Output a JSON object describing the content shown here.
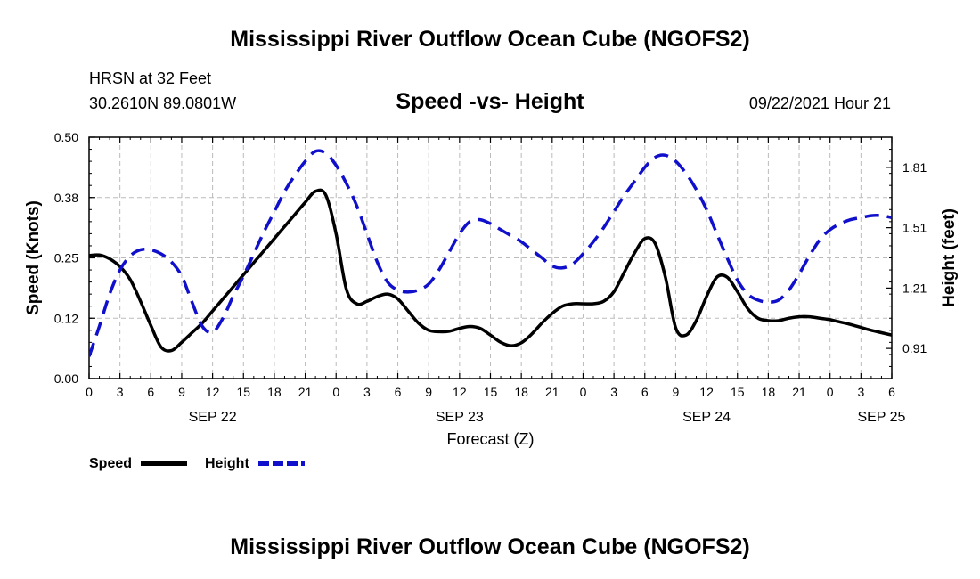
{
  "page": {
    "top_title": "Mississippi River Outflow Ocean Cube (NGOFS2)",
    "bottom_title": "Mississippi River Outflow Ocean Cube (NGOFS2)",
    "station": "HRSN at 32 Feet",
    "coords": "30.2610N  89.0801W",
    "subtitle": "Speed -vs- Height",
    "datetime": "09/22/2021 Hour 21"
  },
  "chart_data": {
    "type": "line",
    "title": "Speed -vs- Height",
    "xlabel": "Forecast (Z)",
    "ylabel": "Speed (Knots)",
    "y2label": "Height (feet)",
    "xlim": [
      0,
      78
    ],
    "ylim": [
      0.0,
      0.5
    ],
    "y2lim": [
      0.76,
      1.96
    ],
    "grid": true,
    "x_ticks": [
      0,
      3,
      6,
      9,
      12,
      15,
      18,
      21,
      24,
      27,
      30,
      33,
      36,
      39,
      42,
      45,
      48,
      51,
      54,
      57,
      60,
      63,
      66,
      69,
      72,
      75,
      78
    ],
    "x_tick_labels": [
      "0",
      "3",
      "6",
      "9",
      "12",
      "15",
      "18",
      "21",
      "0",
      "3",
      "6",
      "9",
      "12",
      "15",
      "18",
      "21",
      "0",
      "3",
      "6",
      "9",
      "12",
      "15",
      "18",
      "21",
      "0",
      "3",
      "6"
    ],
    "date_labels": [
      {
        "x": 12,
        "label": "SEP 22"
      },
      {
        "x": 36,
        "label": "SEP 23"
      },
      {
        "x": 60,
        "label": "SEP 24"
      },
      {
        "x": 77,
        "label": "SEP 25"
      }
    ],
    "y_ticks": [
      0.0,
      0.125,
      0.25,
      0.375,
      0.5
    ],
    "y_tick_labels": [
      "0.00",
      "0.12",
      "0.25",
      "0.38",
      "0.50"
    ],
    "y2_ticks": [
      0.91,
      1.21,
      1.51,
      1.81
    ],
    "y2_tick_labels": [
      "0.91",
      "1.21",
      "1.51",
      "1.81"
    ],
    "series": [
      {
        "name": "Speed",
        "axis": "left",
        "color": "#000000",
        "style": "solid",
        "x": [
          0,
          1,
          2,
          3,
          4,
          5,
          6,
          7,
          8,
          9,
          10,
          11,
          12,
          13,
          14,
          15,
          16,
          17,
          18,
          19,
          20,
          21,
          22,
          23,
          24,
          25,
          26,
          27,
          28,
          29,
          30,
          31,
          32,
          33,
          34,
          35,
          36,
          37,
          38,
          39,
          40,
          41,
          42,
          43,
          44,
          45,
          46,
          47,
          48,
          49,
          50,
          51,
          52,
          53,
          54,
          55,
          56,
          57,
          58,
          59,
          60,
          61,
          62,
          63,
          64,
          65,
          66,
          67,
          68,
          69,
          70,
          71,
          72,
          73,
          74,
          75,
          76,
          77,
          78
        ],
        "y": [
          0.255,
          0.256,
          0.248,
          0.232,
          0.205,
          0.16,
          0.11,
          0.065,
          0.058,
          0.075,
          0.095,
          0.115,
          0.14,
          0.165,
          0.19,
          0.215,
          0.24,
          0.265,
          0.29,
          0.315,
          0.34,
          0.365,
          0.388,
          0.38,
          0.3,
          0.185,
          0.155,
          0.16,
          0.17,
          0.175,
          0.165,
          0.14,
          0.115,
          0.1,
          0.097,
          0.098,
          0.104,
          0.108,
          0.104,
          0.09,
          0.075,
          0.068,
          0.074,
          0.092,
          0.115,
          0.135,
          0.15,
          0.155,
          0.155,
          0.155,
          0.16,
          0.18,
          0.22,
          0.26,
          0.29,
          0.28,
          0.21,
          0.105,
          0.09,
          0.12,
          0.17,
          0.21,
          0.21,
          0.18,
          0.145,
          0.125,
          0.12,
          0.12,
          0.125,
          0.128,
          0.128,
          0.125,
          0.122,
          0.117,
          0.112,
          0.106,
          0.1,
          0.095,
          0.09
        ]
      },
      {
        "name": "Height",
        "axis": "right",
        "color": "#1010cc",
        "style": "dashed",
        "x": [
          0,
          1,
          2,
          3,
          4,
          5,
          6,
          7,
          8,
          9,
          10,
          11,
          12,
          13,
          14,
          15,
          16,
          17,
          18,
          19,
          20,
          21,
          22,
          23,
          24,
          25,
          26,
          27,
          28,
          29,
          30,
          31,
          32,
          33,
          34,
          35,
          36,
          37,
          38,
          39,
          40,
          41,
          42,
          43,
          44,
          45,
          46,
          47,
          48,
          49,
          50,
          51,
          52,
          53,
          54,
          55,
          56,
          57,
          58,
          59,
          60,
          61,
          62,
          63,
          64,
          65,
          66,
          67,
          68,
          69,
          70,
          71,
          72,
          73,
          74,
          75,
          76,
          77,
          78
        ],
        "y": [
          0.87,
          1.02,
          1.18,
          1.3,
          1.37,
          1.4,
          1.4,
          1.38,
          1.34,
          1.27,
          1.14,
          1.02,
          0.99,
          1.06,
          1.17,
          1.27,
          1.38,
          1.49,
          1.59,
          1.69,
          1.77,
          1.84,
          1.89,
          1.88,
          1.82,
          1.73,
          1.62,
          1.48,
          1.34,
          1.24,
          1.2,
          1.19,
          1.2,
          1.23,
          1.3,
          1.39,
          1.48,
          1.54,
          1.55,
          1.53,
          1.5,
          1.47,
          1.44,
          1.4,
          1.36,
          1.32,
          1.31,
          1.33,
          1.38,
          1.44,
          1.51,
          1.59,
          1.67,
          1.74,
          1.81,
          1.86,
          1.87,
          1.84,
          1.78,
          1.7,
          1.6,
          1.48,
          1.36,
          1.25,
          1.18,
          1.15,
          1.14,
          1.15,
          1.2,
          1.28,
          1.37,
          1.45,
          1.5,
          1.53,
          1.55,
          1.56,
          1.57,
          1.57,
          1.56
        ]
      }
    ],
    "legend": [
      {
        "name": "Speed",
        "color": "#000000",
        "style": "solid"
      },
      {
        "name": "Height",
        "color": "#1010cc",
        "style": "dashed"
      }
    ],
    "legend_position": "bottom-left"
  }
}
